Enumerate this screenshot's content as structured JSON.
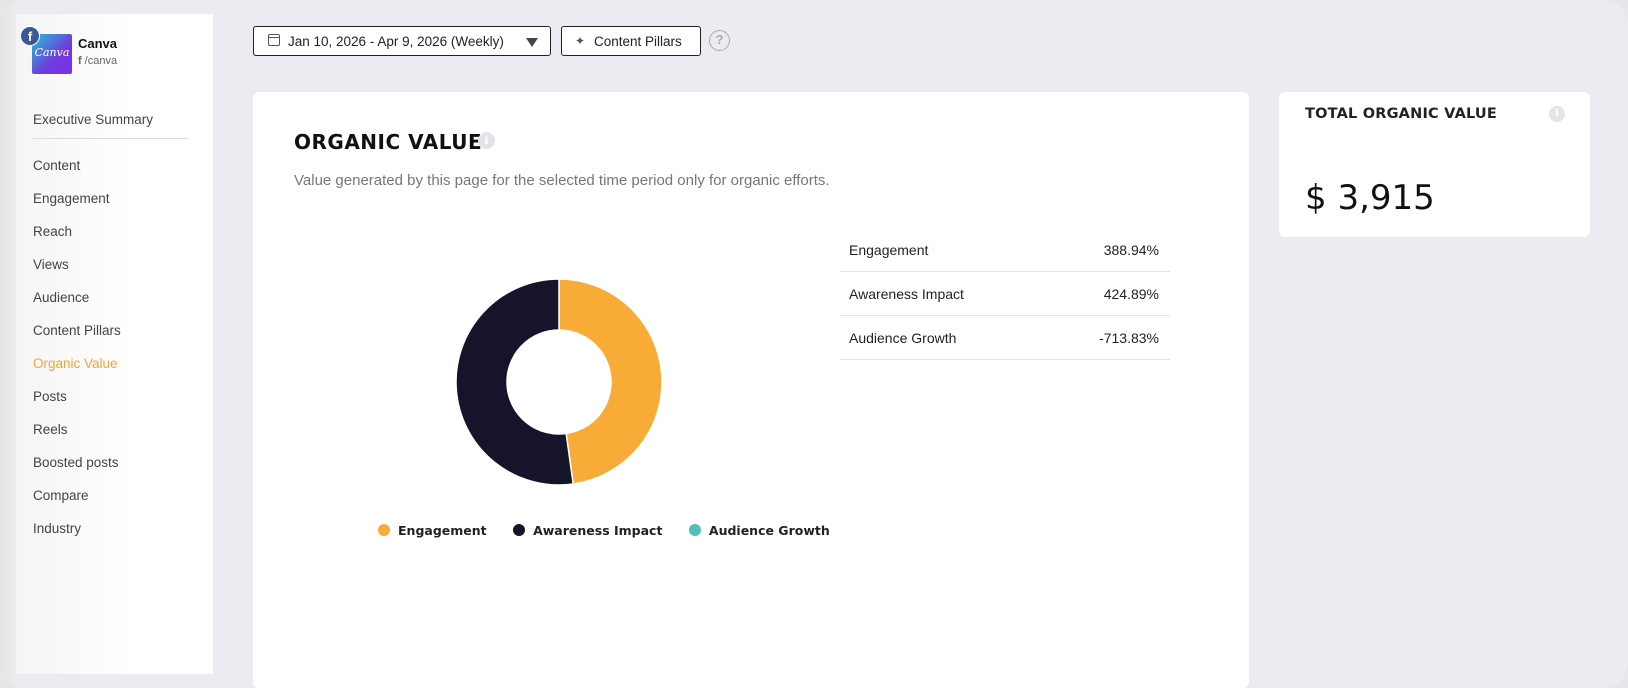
{
  "brand": {
    "name": "Canva",
    "handle": "/canva",
    "logo_text": "Canva",
    "network_badge": "f"
  },
  "nav": {
    "items": [
      {
        "label": "Executive Summary"
      },
      {
        "label": "Content"
      },
      {
        "label": "Engagement"
      },
      {
        "label": "Reach"
      },
      {
        "label": "Views"
      },
      {
        "label": "Audience"
      },
      {
        "label": "Content Pillars"
      },
      {
        "label": "Organic Value",
        "active": true
      },
      {
        "label": "Posts"
      },
      {
        "label": "Reels"
      },
      {
        "label": "Boosted posts"
      },
      {
        "label": "Compare"
      },
      {
        "label": "Industry"
      }
    ],
    "active_color": "#f2a33a"
  },
  "toolbar": {
    "date_range": "Jan 10, 2026 - Apr 9, 2026 (Weekly)",
    "pillars_label": "Content Pillars",
    "help_glyph": "?"
  },
  "organic_value": {
    "title": "ORGANIC VALUE",
    "description": "Value generated by this page for the selected time period only for organic efforts.",
    "rows": [
      {
        "label": "Engagement",
        "value": "388.94%"
      },
      {
        "label": "Awareness Impact",
        "value": "424.89%"
      },
      {
        "label": "Audience Growth",
        "value": "-713.83%"
      }
    ]
  },
  "chart_data": {
    "type": "pie",
    "donut": true,
    "labels": [
      "Engagement",
      "Awareness Impact",
      "Audience Growth"
    ],
    "values": [
      47.8,
      52.2,
      0
    ],
    "colors": [
      "#f9ab38",
      "#16142b",
      "#4fc1b6"
    ],
    "legend_position": "bottom"
  },
  "total": {
    "title": "TOTAL ORGANIC VALUE",
    "value": "$ 3,915"
  }
}
